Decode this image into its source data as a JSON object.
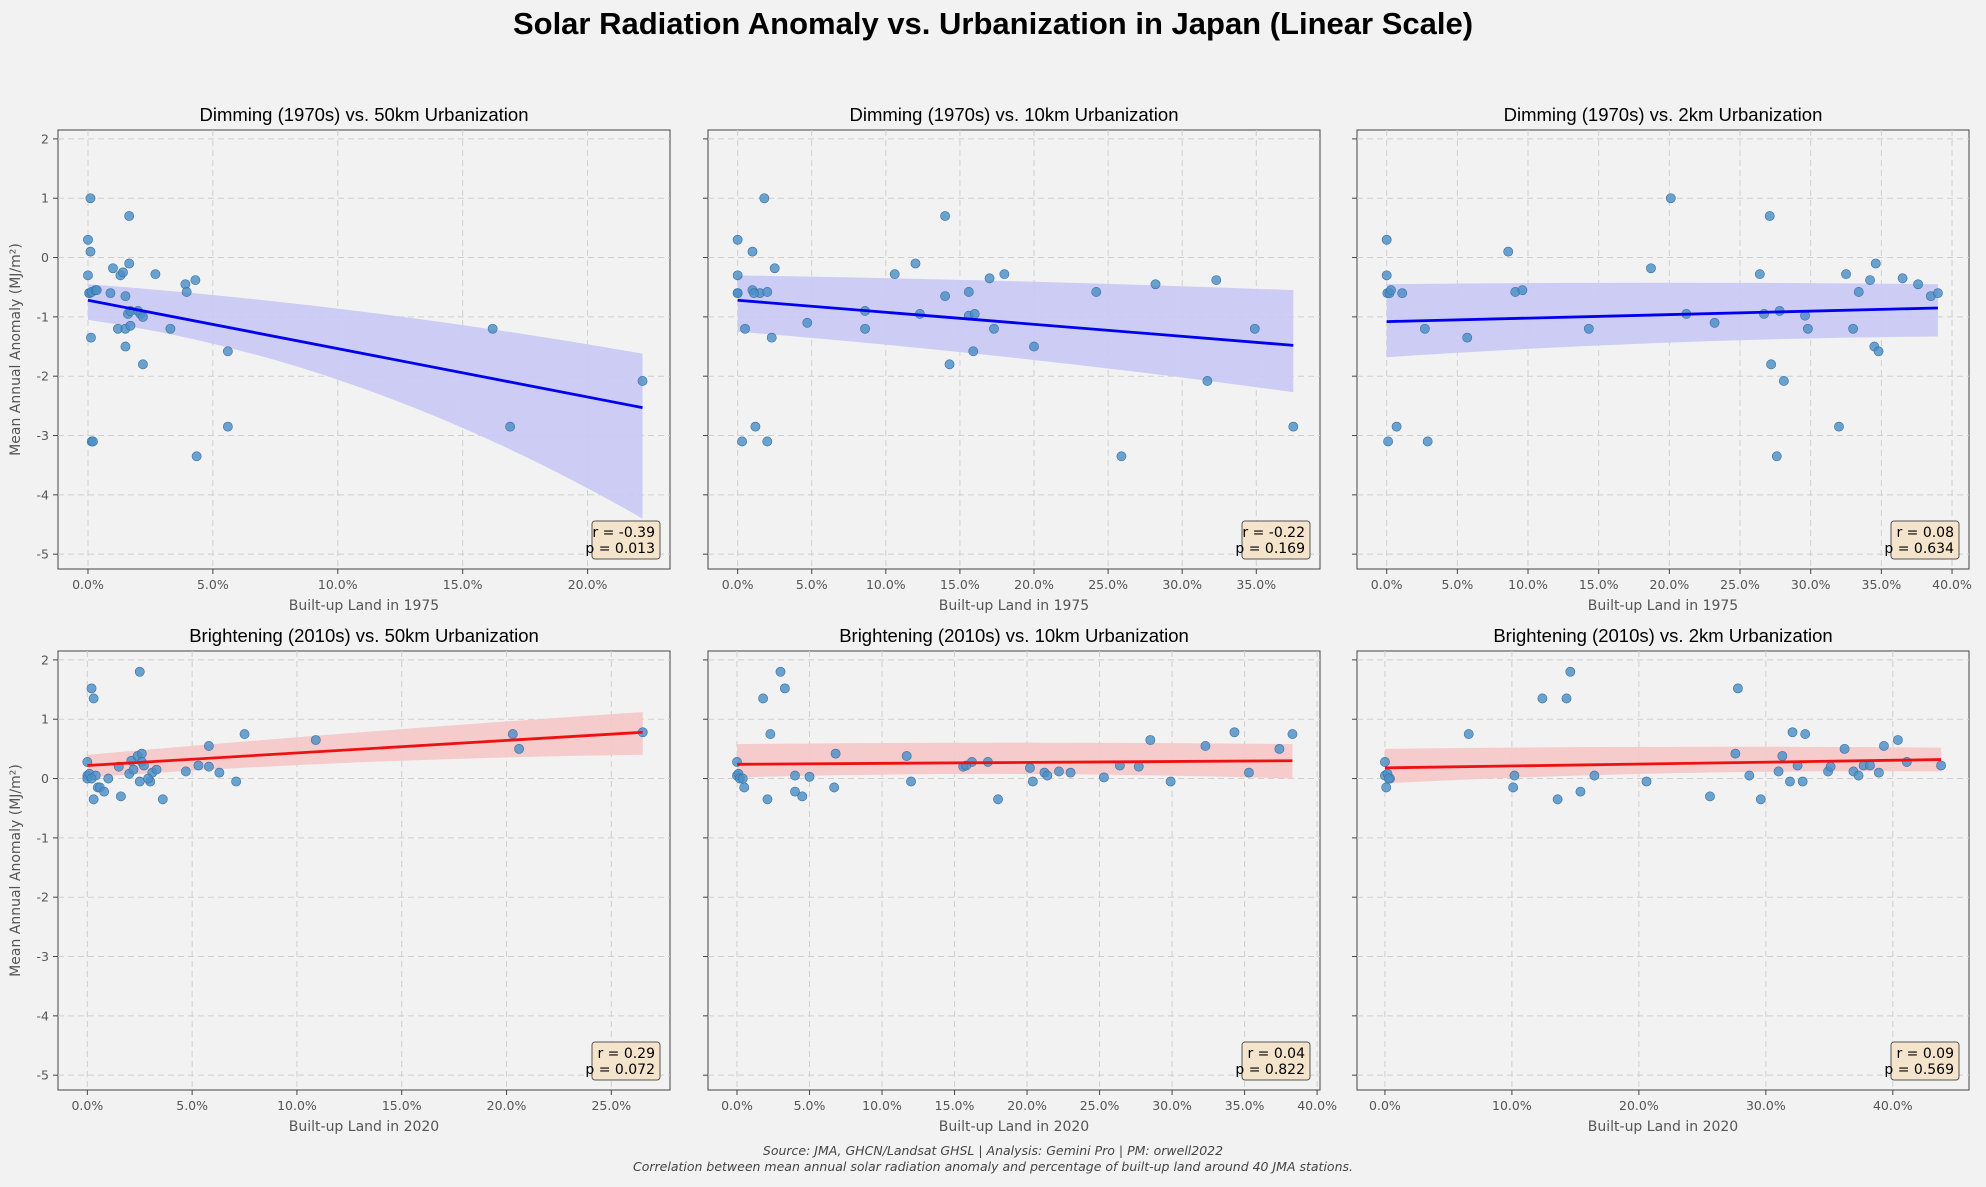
{
  "figure": {
    "title": "Solar Radiation Anomaly vs. Urbanization in Japan (Linear Scale)",
    "footer_line1": "Source: JMA, GHCN/Landsat GHSL | Analysis: Gemini Pro | PM: orwell2022",
    "footer_line2": "Correlation between mean annual solar radiation anomaly and percentage of built-up land around 40 JMA stations.",
    "colors": {
      "points": "#4a8fc7",
      "dimming_line": "#0000ee",
      "dimming_band": "#c8c8f5",
      "brightening_line": "#ee1111",
      "brightening_band": "#f5c6c6",
      "stats_box": "#f4e4cc"
    }
  },
  "chart_data": [
    {
      "type": "scatter",
      "title": "Dimming (1970s) vs. 50km Urbanization",
      "xlabel": "Built-up Land in 1975",
      "ylabel": "Mean Annual Anomaly (MJ/m²)",
      "x_ticks": [
        0,
        5,
        10,
        15,
        20
      ],
      "x_tick_labels": [
        "0.0%",
        "5.0%",
        "10.0%",
        "15.0%",
        "20.0%"
      ],
      "xlim": [
        -1.2,
        23.3
      ],
      "y_ticks": [
        -5,
        -4,
        -3,
        -2,
        -1,
        0,
        1,
        2
      ],
      "ylim": [
        -5.25,
        2.15
      ],
      "grid": true,
      "trend": {
        "x": [
          0,
          22.2
        ],
        "y": [
          -0.72,
          -2.53
        ],
        "band_upper": [
          -0.45,
          -1.62
        ],
        "band_lower": [
          -1.05,
          -4.4
        ],
        "color": "blue"
      },
      "stats": {
        "r": "r = -0.39",
        "p": "p = 0.013"
      },
      "points": {
        "x": [
          0.0,
          0.0,
          0.05,
          0.05,
          0.1,
          0.1,
          0.12,
          0.15,
          0.15,
          0.2,
          0.3,
          0.35,
          1.0,
          1.2,
          0.9,
          1.3,
          1.4,
          1.5,
          1.65,
          1.5,
          1.6,
          1.7,
          1.7,
          1.65,
          1.5,
          2.0,
          2.1,
          2.2,
          2.2,
          2.7,
          3.3,
          3.9,
          3.95,
          4.3,
          4.35,
          5.6,
          5.6,
          16.2,
          16.9,
          22.2
        ],
        "y": [
          -0.3,
          0.3,
          -0.6,
          -0.6,
          1.0,
          0.1,
          -1.35,
          -0.58,
          -3.1,
          -3.1,
          -0.55,
          -0.55,
          -0.18,
          -1.2,
          -0.6,
          -0.3,
          -0.25,
          -0.65,
          -0.1,
          -1.2,
          -0.95,
          -0.9,
          -1.15,
          0.7,
          -1.5,
          -0.9,
          -0.95,
          -1.0,
          -1.8,
          -0.28,
          -1.2,
          -0.45,
          -0.58,
          -0.38,
          -3.35,
          -1.58,
          -2.85,
          -1.2,
          -2.85,
          -2.08
        ]
      }
    },
    {
      "type": "scatter",
      "title": "Dimming (1970s) vs. 10km Urbanization",
      "xlabel": "Built-up Land in 1975",
      "x_ticks": [
        0,
        5,
        10,
        15,
        20,
        25,
        30,
        35
      ],
      "x_tick_labels": [
        "0.0%",
        "5.0%",
        "10.0%",
        "15.0%",
        "20.0%",
        "25.0%",
        "30.0%",
        "35.0%"
      ],
      "xlim": [
        -2.0,
        39.3
      ],
      "y_ticks": [
        -5,
        -4,
        -3,
        -2,
        -1,
        0,
        1,
        2
      ],
      "ylim": [
        -5.25,
        2.15
      ],
      "grid": true,
      "trend": {
        "x": [
          0,
          37.5
        ],
        "y": [
          -0.72,
          -1.48
        ],
        "band_upper": [
          -0.3,
          -0.55
        ],
        "band_lower": [
          -1.25,
          -2.27
        ],
        "color": "blue"
      },
      "stats": {
        "r": "r = -0.22",
        "p": "p = 0.169"
      },
      "points": {
        "x": [
          0.0,
          0.0,
          0.0,
          0.0,
          0.3,
          0.5,
          1.0,
          1.0,
          1.2,
          1.5,
          1.8,
          2.0,
          2.3,
          2.5,
          4.7,
          8.6,
          8.6,
          10.6,
          12.0,
          12.3,
          14.0,
          14.0,
          14.3,
          15.6,
          15.6,
          15.9,
          16.0,
          17.0,
          17.3,
          18.0,
          20.0,
          24.2,
          25.9,
          28.2,
          31.7,
          32.3,
          34.9,
          37.5,
          2.0,
          1.1
        ],
        "y": [
          0.3,
          -0.3,
          -0.6,
          -0.6,
          -3.1,
          -1.2,
          -0.55,
          0.1,
          -2.85,
          -0.6,
          1.0,
          -0.58,
          -1.35,
          -0.18,
          -1.1,
          -0.9,
          -1.2,
          -0.28,
          -0.1,
          -0.95,
          0.7,
          -0.65,
          -1.8,
          -0.98,
          -0.58,
          -1.58,
          -0.95,
          -0.35,
          -1.2,
          -0.28,
          -1.5,
          -0.58,
          -3.35,
          -0.45,
          -2.08,
          -0.38,
          -1.2,
          -2.85,
          -3.1,
          -0.6
        ]
      }
    },
    {
      "type": "scatter",
      "title": "Dimming (1970s) vs. 2km Urbanization",
      "xlabel": "Built-up Land in 1975",
      "x_ticks": [
        0,
        5,
        10,
        15,
        20,
        25,
        30,
        35,
        40
      ],
      "x_tick_labels": [
        "0.0%",
        "5.0%",
        "10.0%",
        "15.0%",
        "20.0%",
        "25.0%",
        "30.0%",
        "35.0%",
        "40.0%"
      ],
      "xlim": [
        -2.1,
        41.2
      ],
      "y_ticks": [
        -5,
        -4,
        -3,
        -2,
        -1,
        0,
        1,
        2
      ],
      "ylim": [
        -5.25,
        2.15
      ],
      "grid": true,
      "trend": {
        "x": [
          0,
          39.0
        ],
        "y": [
          -1.08,
          -0.85
        ],
        "band_upper": [
          -0.45,
          -0.45
        ],
        "band_lower": [
          -1.68,
          -1.33
        ],
        "color": "blue"
      },
      "stats": {
        "r": "r = 0.08",
        "p": "p = 0.634"
      },
      "points": {
        "x": [
          0.0,
          0.0,
          0.05,
          0.1,
          0.2,
          0.3,
          0.7,
          1.1,
          2.7,
          2.9,
          5.7,
          8.6,
          9.1,
          9.6,
          14.3,
          18.7,
          20.1,
          21.2,
          23.2,
          26.4,
          26.7,
          27.1,
          27.2,
          27.6,
          27.8,
          28.1,
          29.6,
          29.8,
          32.0,
          32.5,
          33.0,
          33.4,
          34.2,
          34.5,
          34.6,
          34.8,
          36.5,
          37.6,
          38.5,
          39.0
        ],
        "y": [
          0.3,
          -0.3,
          -0.6,
          -3.1,
          -0.6,
          -0.55,
          -2.85,
          -0.6,
          -1.2,
          -3.1,
          -1.35,
          0.1,
          -0.58,
          -0.55,
          -1.2,
          -0.18,
          1.0,
          -0.95,
          -1.1,
          -0.28,
          -0.95,
          0.7,
          -1.8,
          -3.35,
          -0.9,
          -2.08,
          -0.98,
          -1.2,
          -2.85,
          -0.28,
          -1.2,
          -0.58,
          -0.38,
          -1.5,
          -0.1,
          -1.58,
          -0.35,
          -0.45,
          -0.65,
          -0.6
        ]
      }
    },
    {
      "type": "scatter",
      "title": "Brightening (2010s) vs. 50km Urbanization",
      "xlabel": "Built-up Land in 2020",
      "ylabel": "Mean Annual Anomaly (MJ/m²)",
      "x_ticks": [
        0,
        5,
        10,
        15,
        20,
        25
      ],
      "x_tick_labels": [
        "0.0%",
        "5.0%",
        "10.0%",
        "15.0%",
        "20.0%",
        "25.0%"
      ],
      "xlim": [
        -1.4,
        27.8
      ],
      "y_ticks": [
        -5,
        -4,
        -3,
        -2,
        -1,
        0,
        1,
        2
      ],
      "ylim": [
        -5.25,
        2.15
      ],
      "grid": true,
      "trend": {
        "x": [
          0,
          26.5
        ],
        "y": [
          0.22,
          0.78
        ],
        "band_upper": [
          0.4,
          1.12
        ],
        "band_lower": [
          0.02,
          0.4
        ],
        "color": "red"
      },
      "stats": {
        "r": "r = 0.29",
        "p": "p = 0.072"
      },
      "points": {
        "x": [
          0.0,
          0.0,
          0.0,
          0.1,
          0.2,
          0.3,
          0.3,
          0.4,
          0.5,
          0.6,
          0.8,
          1.5,
          1.6,
          2.0,
          2.1,
          2.2,
          2.4,
          2.5,
          2.5,
          2.6,
          2.6,
          2.7,
          3.0,
          3.1,
          3.3,
          3.6,
          4.7,
          5.3,
          5.8,
          5.8,
          6.3,
          7.1,
          7.5,
          10.9,
          20.3,
          20.6,
          26.5,
          0.2,
          1.0,
          2.9
        ],
        "y": [
          0.28,
          0.05,
          0.0,
          0.08,
          1.52,
          -0.35,
          1.35,
          0.05,
          -0.15,
          -0.15,
          -0.22,
          0.2,
          -0.3,
          0.08,
          0.3,
          0.15,
          0.38,
          1.8,
          -0.05,
          0.42,
          0.28,
          0.22,
          -0.05,
          0.1,
          0.15,
          -0.35,
          0.12,
          0.22,
          0.55,
          0.2,
          0.1,
          -0.05,
          0.75,
          0.65,
          0.75,
          0.5,
          0.78,
          0.0,
          0.0,
          0.0
        ]
      }
    },
    {
      "type": "scatter",
      "title": "Brightening (2010s) vs. 10km Urbanization",
      "xlabel": "Built-up Land in 2020",
      "x_ticks": [
        0,
        5,
        10,
        15,
        20,
        25,
        30,
        35,
        40
      ],
      "x_tick_labels": [
        "0.0%",
        "5.0%",
        "10.0%",
        "15.0%",
        "20.0%",
        "25.0%",
        "30.0%",
        "35.0%",
        "40.0%"
      ],
      "xlim": [
        -2.0,
        40.2
      ],
      "y_ticks": [
        -5,
        -4,
        -3,
        -2,
        -1,
        0,
        1,
        2
      ],
      "ylim": [
        -5.25,
        2.15
      ],
      "grid": true,
      "trend": {
        "x": [
          0,
          38.3
        ],
        "y": [
          0.24,
          0.3
        ],
        "band_upper": [
          0.58,
          0.58
        ],
        "band_lower": [
          0.02,
          0.0
        ],
        "color": "red"
      },
      "stats": {
        "r": "r = 0.04",
        "p": "p = 0.822"
      },
      "points": {
        "x": [
          0.0,
          0.0,
          0.1,
          0.2,
          0.5,
          1.8,
          2.1,
          2.3,
          3.0,
          3.3,
          4.0,
          4.0,
          4.5,
          5.0,
          6.7,
          6.8,
          11.7,
          12.0,
          15.6,
          16.2,
          17.3,
          18.0,
          20.2,
          20.4,
          21.2,
          21.4,
          22.2,
          23.0,
          25.3,
          26.4,
          27.7,
          28.5,
          29.9,
          32.3,
          34.3,
          35.3,
          37.4,
          38.3,
          0.4,
          15.8
        ],
        "y": [
          0.28,
          0.05,
          0.08,
          0.0,
          -0.15,
          1.35,
          -0.35,
          0.75,
          1.8,
          1.52,
          -0.22,
          0.05,
          -0.3,
          0.03,
          -0.15,
          0.42,
          0.38,
          -0.05,
          0.2,
          0.28,
          0.28,
          -0.35,
          0.18,
          -0.05,
          0.1,
          0.05,
          0.12,
          0.1,
          0.02,
          0.22,
          0.2,
          0.65,
          -0.05,
          0.55,
          0.78,
          0.1,
          0.5,
          0.75,
          0.0,
          0.22
        ]
      }
    },
    {
      "type": "scatter",
      "title": "Brightening (2010s) vs. 2km Urbanization",
      "xlabel": "Built-up Land in 2020",
      "x_ticks": [
        0,
        10,
        20,
        30,
        40
      ],
      "x_tick_labels": [
        "0.0%",
        "10.0%",
        "20.0%",
        "30.0%",
        "40.0%"
      ],
      "xlim": [
        -2.2,
        46.0
      ],
      "y_ticks": [
        -5,
        -4,
        -3,
        -2,
        -1,
        0,
        1,
        2
      ],
      "ylim": [
        -5.25,
        2.15
      ],
      "grid": true,
      "trend": {
        "x": [
          0,
          43.8
        ],
        "y": [
          0.18,
          0.32
        ],
        "band_upper": [
          0.5,
          0.52
        ],
        "band_lower": [
          -0.08,
          0.12
        ],
        "color": "red"
      },
      "stats": {
        "r": "r = 0.09",
        "p": "p = 0.569"
      },
      "points": {
        "x": [
          0.0,
          0.0,
          0.1,
          0.2,
          0.4,
          6.6,
          10.1,
          10.2,
          12.4,
          13.6,
          14.3,
          14.6,
          15.4,
          16.5,
          20.6,
          25.6,
          27.6,
          27.8,
          28.7,
          29.6,
          31.0,
          31.3,
          31.9,
          32.1,
          32.5,
          32.9,
          33.1,
          34.9,
          35.1,
          36.2,
          36.9,
          37.3,
          37.7,
          38.2,
          38.9,
          39.3,
          40.4,
          41.1,
          43.8,
          0.3
        ],
        "y": [
          0.28,
          0.05,
          -0.15,
          0.08,
          0.0,
          0.75,
          -0.15,
          0.05,
          1.35,
          -0.35,
          1.35,
          1.8,
          -0.22,
          0.05,
          -0.05,
          -0.3,
          0.42,
          1.52,
          0.05,
          -0.35,
          0.12,
          0.38,
          -0.05,
          0.78,
          0.22,
          -0.05,
          0.75,
          0.12,
          0.2,
          0.5,
          0.12,
          0.05,
          0.22,
          0.22,
          0.1,
          0.55,
          0.65,
          0.28,
          0.22,
          0.0
        ]
      }
    }
  ]
}
